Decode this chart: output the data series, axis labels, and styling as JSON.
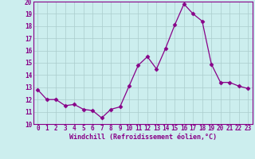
{
  "x": [
    0,
    1,
    2,
    3,
    4,
    5,
    6,
    7,
    8,
    9,
    10,
    11,
    12,
    13,
    14,
    15,
    16,
    17,
    18,
    19,
    20,
    21,
    22,
    23
  ],
  "y": [
    12.8,
    12.0,
    12.0,
    11.5,
    11.6,
    11.2,
    11.1,
    10.5,
    11.2,
    11.4,
    13.1,
    14.8,
    15.5,
    14.5,
    16.2,
    18.1,
    19.8,
    19.0,
    18.4,
    14.9,
    13.4,
    13.4,
    13.1,
    12.9
  ],
  "xlabel": "Windchill (Refroidissement éolien,°C)",
  "ylim": [
    10,
    20
  ],
  "xlim_min": -0.5,
  "xlim_max": 23.5,
  "yticks": [
    10,
    11,
    12,
    13,
    14,
    15,
    16,
    17,
    18,
    19,
    20
  ],
  "xticks": [
    0,
    1,
    2,
    3,
    4,
    5,
    6,
    7,
    8,
    9,
    10,
    11,
    12,
    13,
    14,
    15,
    16,
    17,
    18,
    19,
    20,
    21,
    22,
    23
  ],
  "line_color": "#880088",
  "marker": "D",
  "marker_size": 2.5,
  "bg_color": "#cceeee",
  "grid_color": "#aacccc",
  "spine_color": "#880088",
  "tick_fontsize": 5.5,
  "xlabel_fontsize": 6.0
}
